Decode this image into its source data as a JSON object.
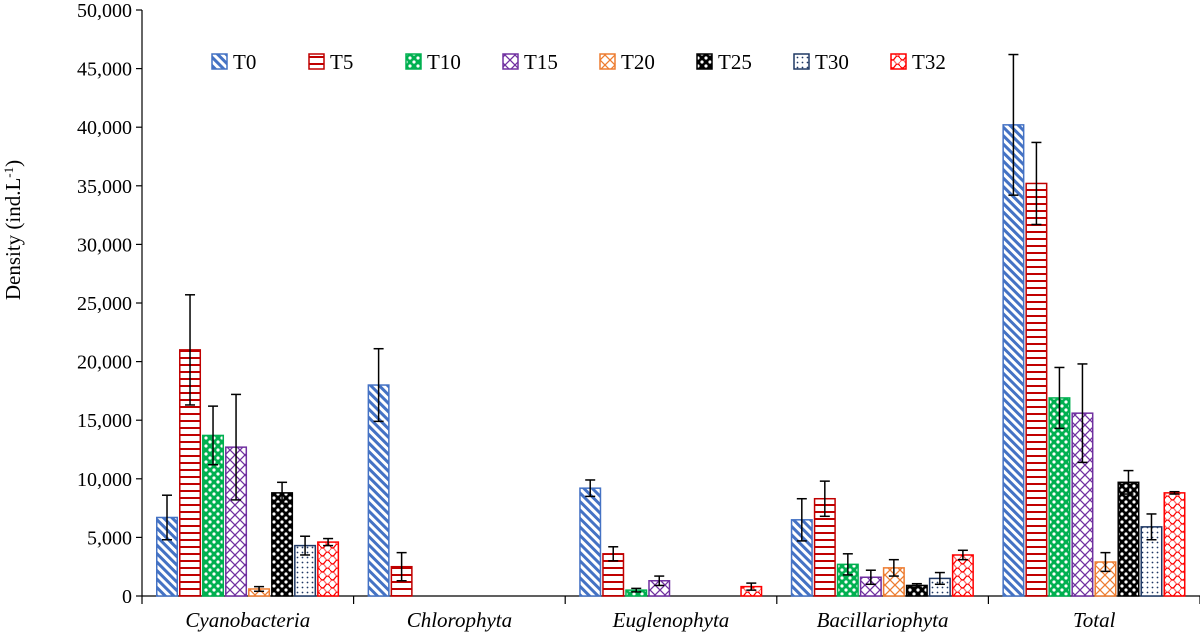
{
  "chart_data": {
    "type": "bar",
    "ylabel": "Density (ind.L",
    "ylabel_sup": "-1",
    "ylabel_end": ")",
    "ylim": [
      0,
      50000
    ],
    "yticks": [
      0,
      5000,
      10000,
      15000,
      20000,
      25000,
      30000,
      35000,
      40000,
      45000,
      50000
    ],
    "ytick_labels": [
      "0",
      "5,000",
      "10,000",
      "15,000",
      "20,000",
      "25,000",
      "30,000",
      "35,000",
      "40,000",
      "45,000",
      "50,000"
    ],
    "categories": [
      "Cyanobacteria",
      "Chlorophyta",
      "Euglenophyta",
      "Bacillariophyta",
      "Total"
    ],
    "legend_position": "top",
    "grid": false,
    "series": [
      {
        "name": "T0",
        "color": "#4472C4",
        "pattern": "diag",
        "values": [
          6700,
          18000,
          9200,
          6500,
          40200
        ],
        "errors": [
          1900,
          3100,
          700,
          1800,
          6000
        ]
      },
      {
        "name": "T5",
        "color": "#C00000",
        "pattern": "hlines",
        "values": [
          21000,
          2500,
          3600,
          8300,
          35200
        ],
        "errors": [
          4700,
          1200,
          600,
          1500,
          3500
        ]
      },
      {
        "name": "T10",
        "color": "#00B050",
        "pattern": "dots",
        "values": [
          13700,
          0,
          500,
          2700,
          16900
        ],
        "errors": [
          2500,
          0,
          150,
          900,
          2600
        ]
      },
      {
        "name": "T15",
        "color": "#7030A0",
        "pattern": "cross",
        "values": [
          12700,
          0,
          1300,
          1600,
          15600
        ],
        "errors": [
          4500,
          0,
          400,
          600,
          4200
        ]
      },
      {
        "name": "T20",
        "color": "#ED7D31",
        "pattern": "cross",
        "values": [
          600,
          0,
          0,
          2400,
          2900
        ],
        "errors": [
          200,
          0,
          0,
          700,
          800
        ]
      },
      {
        "name": "T25",
        "color": "#000000",
        "pattern": "dots",
        "values": [
          8800,
          0,
          0,
          900,
          9700
        ],
        "errors": [
          900,
          0,
          0,
          150,
          1000
        ]
      },
      {
        "name": "T30",
        "color": "#1F3864",
        "pattern": "finedots",
        "values": [
          4300,
          0,
          0,
          1500,
          5900
        ],
        "errors": [
          800,
          0,
          0,
          500,
          1100
        ]
      },
      {
        "name": "T32",
        "color": "#FF0000",
        "pattern": "wave",
        "values": [
          4600,
          0,
          800,
          3500,
          8800
        ],
        "errors": [
          300,
          0,
          300,
          400,
          100
        ]
      }
    ]
  }
}
